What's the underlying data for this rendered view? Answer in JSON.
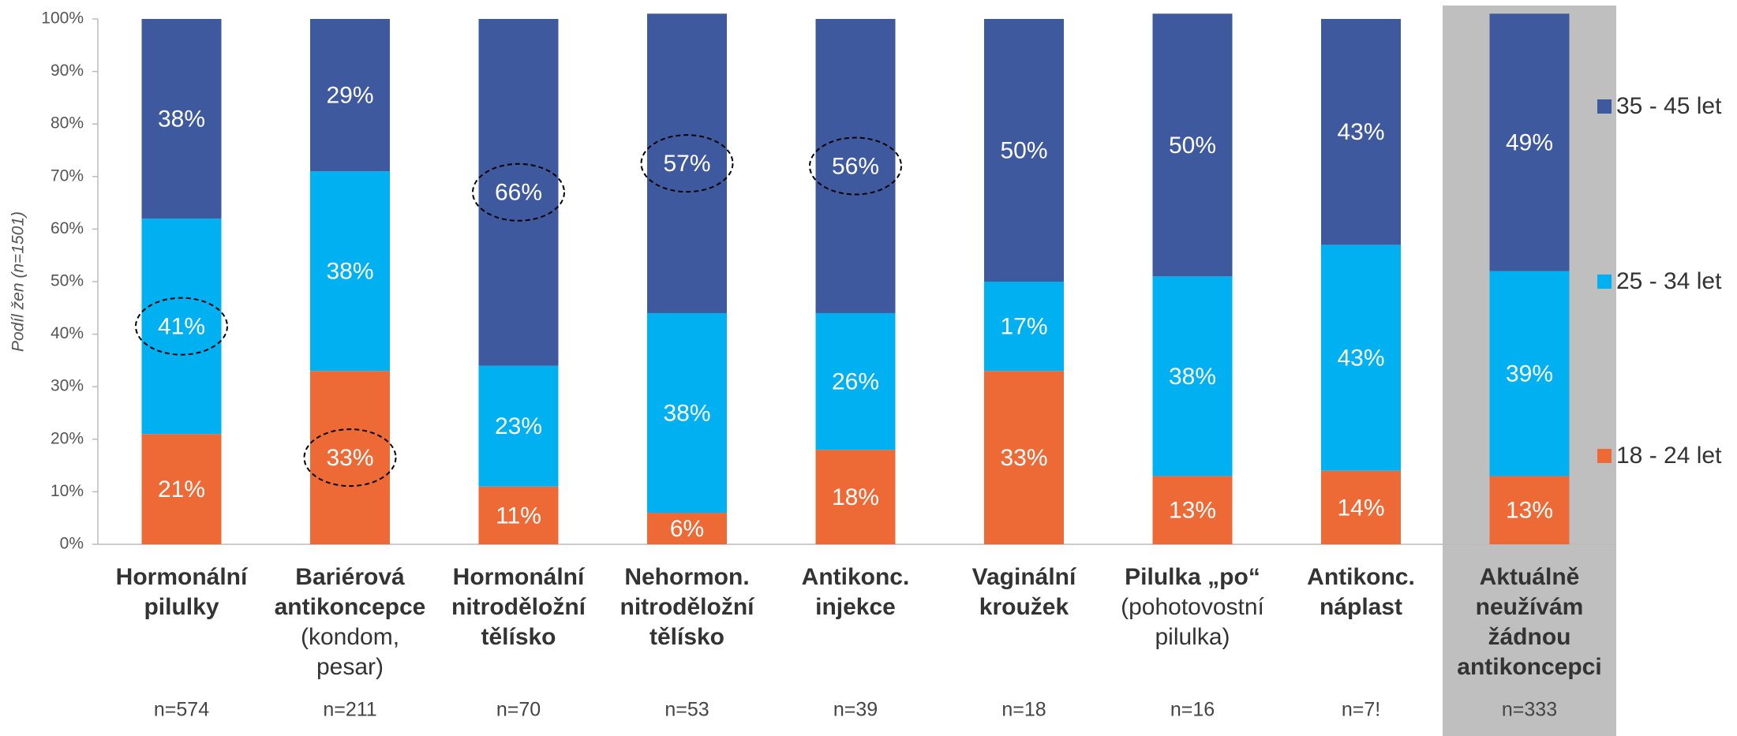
{
  "chart_data": {
    "type": "stacked_bar_100",
    "y_axis_label": "Podíl žen (n=1501)",
    "categories": [
      "Hormonální pilulky",
      "Bariérová antikoncepce",
      "Hormonální nitroděložní tělísko",
      "Nehormon. nitroděložní tělísko",
      "Antikonc. injekce",
      "Vaginální kroužek",
      "Pilulka „po“",
      "Antikonc. náplast",
      "Aktuálně neužívám žádnou antikoncepci"
    ],
    "category_notes": [
      null,
      "(kondom, pesar)",
      null,
      null,
      null,
      null,
      "(pohotovostní pilulka)",
      null,
      null
    ],
    "sample_sizes": [
      "n=574",
      "n=211",
      "n=70",
      "n=53",
      "n=39",
      "n=18",
      "n=16",
      "n=7!",
      "n=333"
    ],
    "highlighted_category": 8,
    "series": [
      {
        "name": "18 - 24 let",
        "color": "#ED6A36",
        "values": [
          21,
          33,
          11,
          6,
          18,
          33,
          13,
          14,
          13
        ],
        "value_labels": [
          "21%",
          "33%",
          "11%",
          "6%",
          "18%",
          "33%",
          "13%",
          "14%",
          "13%"
        ]
      },
      {
        "name": "25 - 34 let",
        "color": "#00B0F0",
        "values": [
          41,
          38,
          23,
          38,
          26,
          17,
          38,
          43,
          39
        ],
        "value_labels": [
          "41%",
          "38%",
          "23%",
          "38%",
          "26%",
          "17%",
          "38%",
          "43%",
          "39%"
        ]
      },
      {
        "name": "35 - 45 let",
        "color": "#3F599F",
        "values": [
          38,
          29,
          66,
          57,
          56,
          50,
          50,
          43,
          49
        ],
        "value_labels": [
          "38%",
          "29%",
          "66%",
          "57%",
          "56%",
          "50%",
          "50%",
          "43%",
          "49%"
        ]
      }
    ],
    "circled_labels": [
      [
        0,
        1
      ],
      [
        1,
        0
      ],
      [
        2,
        2
      ],
      [
        3,
        2
      ],
      [
        4,
        2
      ]
    ],
    "ylim": [
      0,
      100
    ],
    "yticks": [
      {
        "value": 0,
        "label": "0%"
      },
      {
        "value": 10,
        "label": "10%"
      },
      {
        "value": 20,
        "label": "20%"
      },
      {
        "value": 30,
        "label": "30%"
      },
      {
        "value": 40,
        "label": "40%"
      },
      {
        "value": 50,
        "label": "50%"
      },
      {
        "value": 60,
        "label": "60%"
      },
      {
        "value": 70,
        "label": "70%"
      },
      {
        "value": 80,
        "label": "80%"
      },
      {
        "value": 90,
        "label": "90%"
      },
      {
        "value": 100,
        "label": "100%"
      }
    ],
    "grid": false,
    "legend": "right"
  }
}
